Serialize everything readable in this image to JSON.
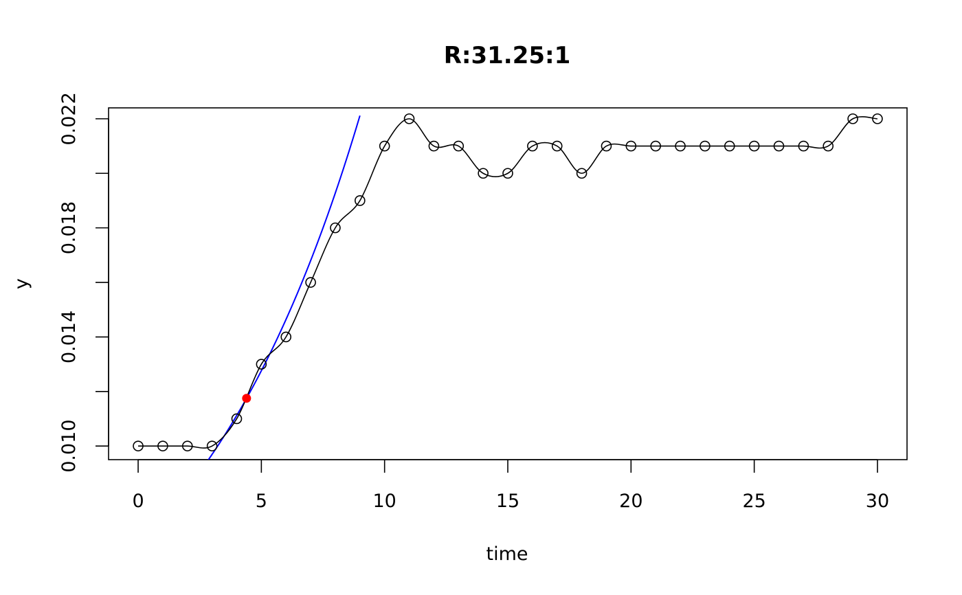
{
  "chart_data": {
    "type": "scatter",
    "title": "R:31.25:1",
    "xlabel": "time",
    "ylabel": "y",
    "xlim": [
      -1.2,
      31.2
    ],
    "ylim": [
      0.0095,
      0.0224
    ],
    "grid": false,
    "x_ticks": [
      0,
      5,
      10,
      15,
      20,
      25,
      30
    ],
    "x_tick_labels": [
      "0",
      "5",
      "10",
      "15",
      "20",
      "25",
      "30"
    ],
    "y_ticks": [
      0.01,
      0.012,
      0.014,
      0.016,
      0.018,
      0.02,
      0.022
    ],
    "y_tick_labels": [
      "0.010",
      "",
      "0.014",
      "",
      "0.018",
      "",
      "0.022"
    ],
    "series": [
      {
        "name": "observed",
        "marker": "open-circle",
        "x": [
          0,
          1,
          2,
          3,
          4,
          5,
          6,
          7,
          8,
          9,
          10,
          11,
          12,
          13,
          14,
          15,
          16,
          17,
          18,
          19,
          20,
          21,
          22,
          23,
          24,
          25,
          26,
          27,
          28,
          29,
          30
        ],
        "y": [
          0.01,
          0.01,
          0.01,
          0.01,
          0.011,
          0.013,
          0.014,
          0.016,
          0.018,
          0.019,
          0.021,
          0.022,
          0.021,
          0.021,
          0.02,
          0.02,
          0.021,
          0.021,
          0.02,
          0.021,
          0.021,
          0.021,
          0.021,
          0.021,
          0.021,
          0.021,
          0.021,
          0.021,
          0.021,
          0.022,
          0.022
        ]
      }
    ],
    "fit_curve": {
      "name": "exponential fit",
      "color": "#0000ff",
      "x0": 4.4,
      "y0": 0.01175,
      "rate": 0.1375
    },
    "highlight_point": {
      "name": "max growth point",
      "x": 4.4,
      "y": 0.01175,
      "color": "#ff0000"
    },
    "colors": {
      "line": "#000000",
      "fit": "#0000ff",
      "highlight": "#ff0000",
      "background": "#ffffff"
    }
  }
}
